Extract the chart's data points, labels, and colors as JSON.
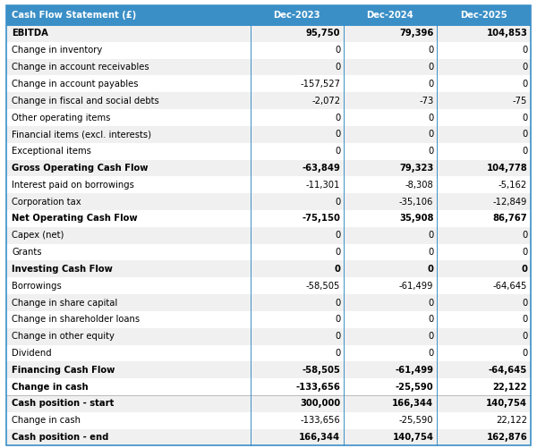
{
  "header": [
    "Cash Flow Statement (£)",
    "Dec-2023",
    "Dec-2024",
    "Dec-2025"
  ],
  "rows": [
    {
      "label": "EBITDA",
      "values": [
        "95,750",
        "79,396",
        "104,853"
      ],
      "bold": true,
      "bg": "#f0f0f0"
    },
    {
      "label": "Change in inventory",
      "values": [
        "0",
        "0",
        "0"
      ],
      "bold": false,
      "bg": "#ffffff"
    },
    {
      "label": "Change in account receivables",
      "values": [
        "0",
        "0",
        "0"
      ],
      "bold": false,
      "bg": "#f0f0f0"
    },
    {
      "label": "Change in account payables",
      "values": [
        "-157,527",
        "0",
        "0"
      ],
      "bold": false,
      "bg": "#ffffff"
    },
    {
      "label": "Change in fiscal and social debts",
      "values": [
        "-2,072",
        "-73",
        "-75"
      ],
      "bold": false,
      "bg": "#f0f0f0"
    },
    {
      "label": "Other operating items",
      "values": [
        "0",
        "0",
        "0"
      ],
      "bold": false,
      "bg": "#ffffff"
    },
    {
      "label": "Financial items (excl. interests)",
      "values": [
        "0",
        "0",
        "0"
      ],
      "bold": false,
      "bg": "#f0f0f0"
    },
    {
      "label": "Exceptional items",
      "values": [
        "0",
        "0",
        "0"
      ],
      "bold": false,
      "bg": "#ffffff"
    },
    {
      "label": "Gross Operating Cash Flow",
      "values": [
        "-63,849",
        "79,323",
        "104,778"
      ],
      "bold": true,
      "bg": "#f0f0f0"
    },
    {
      "label": "Interest paid on borrowings",
      "values": [
        "-11,301",
        "-8,308",
        "-5,162"
      ],
      "bold": false,
      "bg": "#ffffff"
    },
    {
      "label": "Corporation tax",
      "values": [
        "0",
        "-35,106",
        "-12,849"
      ],
      "bold": false,
      "bg": "#f0f0f0"
    },
    {
      "label": "Net Operating Cash Flow",
      "values": [
        "-75,150",
        "35,908",
        "86,767"
      ],
      "bold": true,
      "bg": "#ffffff"
    },
    {
      "label": "Capex (net)",
      "values": [
        "0",
        "0",
        "0"
      ],
      "bold": false,
      "bg": "#f0f0f0"
    },
    {
      "label": "Grants",
      "values": [
        "0",
        "0",
        "0"
      ],
      "bold": false,
      "bg": "#ffffff"
    },
    {
      "label": "Investing Cash Flow",
      "values": [
        "0",
        "0",
        "0"
      ],
      "bold": true,
      "bg": "#f0f0f0"
    },
    {
      "label": "Borrowings",
      "values": [
        "-58,505",
        "-61,499",
        "-64,645"
      ],
      "bold": false,
      "bg": "#ffffff"
    },
    {
      "label": "Change in share capital",
      "values": [
        "0",
        "0",
        "0"
      ],
      "bold": false,
      "bg": "#f0f0f0"
    },
    {
      "label": "Change in shareholder loans",
      "values": [
        "0",
        "0",
        "0"
      ],
      "bold": false,
      "bg": "#ffffff"
    },
    {
      "label": "Change in other equity",
      "values": [
        "0",
        "0",
        "0"
      ],
      "bold": false,
      "bg": "#f0f0f0"
    },
    {
      "label": "Dividend",
      "values": [
        "0",
        "0",
        "0"
      ],
      "bold": false,
      "bg": "#ffffff"
    },
    {
      "label": "Financing Cash Flow",
      "values": [
        "-58,505",
        "-61,499",
        "-64,645"
      ],
      "bold": true,
      "bg": "#f0f0f0"
    },
    {
      "label": "Change in cash",
      "values": [
        "-133,656",
        "-25,590",
        "22,122"
      ],
      "bold": true,
      "bg": "#ffffff"
    },
    {
      "label": "Cash position - start",
      "values": [
        "300,000",
        "166,344",
        "140,754"
      ],
      "bold": true,
      "bg": "#f0f0f0"
    },
    {
      "label": "Change in cash",
      "values": [
        "-133,656",
        "-25,590",
        "22,122"
      ],
      "bold": false,
      "bg": "#ffffff"
    },
    {
      "label": "Cash position - end",
      "values": [
        "166,344",
        "140,754",
        "162,876"
      ],
      "bold": true,
      "bg": "#f0f0f0"
    }
  ],
  "header_bg": "#3a8fc7",
  "header_text_color": "#ffffff",
  "fig_width": 6.0,
  "fig_height": 5.01,
  "dpi": 100
}
